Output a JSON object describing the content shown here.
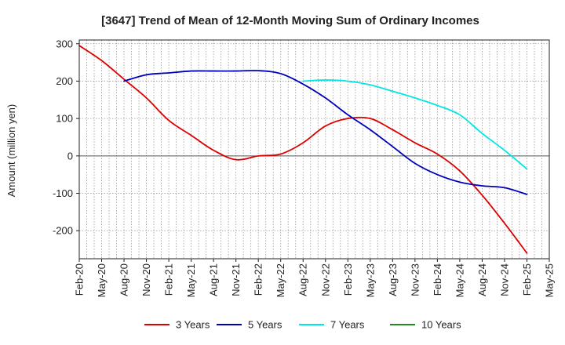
{
  "chart_data": {
    "type": "line",
    "title": "[3647]  Trend of Mean of 12-Month Moving Sum of Ordinary Incomes",
    "xlabel": "",
    "ylabel": "Amount (million yen)",
    "ylim": [
      -275,
      310
    ],
    "yticks": [
      300,
      200,
      100,
      0,
      -100,
      -200
    ],
    "grid": true,
    "legend_position": "bottom",
    "categories": [
      "Feb-20",
      "May-20",
      "Aug-20",
      "Nov-20",
      "Feb-21",
      "May-21",
      "Aug-21",
      "Nov-21",
      "Feb-22",
      "May-22",
      "Aug-22",
      "Nov-22",
      "Feb-23",
      "May-23",
      "Aug-23",
      "Nov-23",
      "Feb-24",
      "May-24",
      "Aug-24",
      "Nov-24",
      "Feb-25",
      "May-25"
    ],
    "series": [
      {
        "name": "3 Years",
        "color": "#dd0000",
        "x": [
          "Feb-20",
          "May-20",
          "Aug-20",
          "Nov-20",
          "Feb-21",
          "May-21",
          "Aug-21",
          "Nov-21",
          "Feb-22",
          "May-22",
          "Aug-22",
          "Nov-22",
          "Feb-23",
          "May-23",
          "Aug-23",
          "Nov-23",
          "Feb-24",
          "May-24",
          "Aug-24",
          "Nov-24",
          "Feb-25"
        ],
        "values": [
          295,
          255,
          205,
          155,
          95,
          55,
          15,
          -10,
          0,
          5,
          35,
          80,
          100,
          100,
          70,
          35,
          5,
          -40,
          -105,
          -180,
          -260
        ]
      },
      {
        "name": "5 Years",
        "color": "#0000bb",
        "x": [
          "Aug-20",
          "Nov-20",
          "Feb-21",
          "May-21",
          "Aug-21",
          "Nov-21",
          "Feb-22",
          "May-22",
          "Aug-22",
          "Nov-22",
          "Feb-23",
          "May-23",
          "Aug-23",
          "Nov-23",
          "Feb-24",
          "May-24",
          "Aug-24",
          "Nov-24",
          "Feb-25"
        ],
        "values": [
          200,
          217,
          222,
          227,
          227,
          227,
          228,
          220,
          192,
          155,
          110,
          70,
          25,
          -20,
          -50,
          -70,
          -80,
          -85,
          -103
        ]
      },
      {
        "name": "7 Years",
        "color": "#00e5e5",
        "x": [
          "Aug-22",
          "Nov-22",
          "Feb-23",
          "May-23",
          "Aug-23",
          "Nov-23",
          "Feb-24",
          "May-24",
          "Aug-24",
          "Nov-24",
          "Feb-25"
        ],
        "values": [
          200,
          203,
          200,
          190,
          173,
          155,
          135,
          110,
          60,
          15,
          -35
        ]
      },
      {
        "name": "10 Years",
        "color": "#228b22",
        "x": [],
        "values": []
      }
    ]
  }
}
